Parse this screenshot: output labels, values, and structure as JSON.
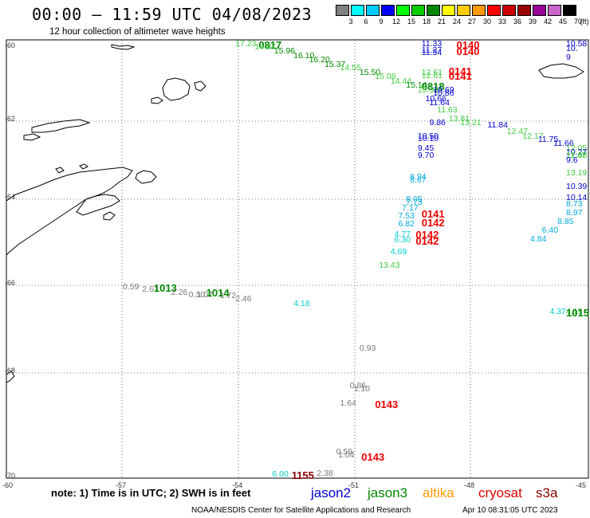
{
  "header": {
    "title": "00:00 – 11:59 UTC 04/08/2023",
    "subtitle": "12 hour collection of altimeter wave heights"
  },
  "colorbar": {
    "swatches": [
      {
        "value": "3",
        "color": "#808080"
      },
      {
        "value": "6",
        "color": "#00ffff"
      },
      {
        "value": "9",
        "color": "#00ccff"
      },
      {
        "value": "12",
        "color": "#0000ff"
      },
      {
        "value": "15",
        "color": "#00ff00"
      },
      {
        "value": "18",
        "color": "#00cc00"
      },
      {
        "value": "21",
        "color": "#008800"
      },
      {
        "value": "24",
        "color": "#ffff00"
      },
      {
        "value": "27",
        "color": "#ffcc00"
      },
      {
        "value": "30",
        "color": "#ff9900"
      },
      {
        "value": "33",
        "color": "#ff0000"
      },
      {
        "value": "36",
        "color": "#cc0000"
      },
      {
        "value": "39",
        "color": "#990000"
      },
      {
        "value": "42",
        "color": "#990099"
      },
      {
        "value": "45",
        "color": "#cc66cc"
      },
      {
        "value": "70",
        "color": "#000000"
      }
    ],
    "unit": "(ft)"
  },
  "axes": {
    "y_ticks": [
      "-60",
      "-62",
      "-64",
      "-66",
      "-68",
      "-70"
    ],
    "x_ticks": [
      "-60",
      "-57",
      "-54",
      "-51",
      "-48",
      "-45"
    ]
  },
  "labels": [
    {
      "text": "17.23",
      "lon": -54.1,
      "lat": -59.9,
      "color": "#44cc44"
    },
    {
      "text": "0817",
      "lon": -53.5,
      "lat": -59.9,
      "color": "#008800",
      "big": true
    },
    {
      "text": "14.97",
      "lon": -53.6,
      "lat": -60.07,
      "color": "#44cc44"
    },
    {
      "text": "15.96",
      "lon": -53.1,
      "lat": -60.17,
      "color": "#008800"
    },
    {
      "text": "16.10",
      "lon": -52.6,
      "lat": -60.27,
      "color": "#008800"
    },
    {
      "text": "16.20",
      "lon": -52.2,
      "lat": -60.37,
      "color": "#008800"
    },
    {
      "text": "15.37",
      "lon": -51.8,
      "lat": -60.47,
      "color": "#008800"
    },
    {
      "text": "14.55",
      "lon": -51.4,
      "lat": -60.55,
      "color": "#44cc44"
    },
    {
      "text": "15.50",
      "lon": -50.9,
      "lat": -60.65,
      "color": "#008800"
    },
    {
      "text": "15.08",
      "lon": -50.5,
      "lat": -60.75,
      "color": "#44cc44"
    },
    {
      "text": "14.44",
      "lon": -50.1,
      "lat": -60.85,
      "color": "#44cc44"
    },
    {
      "text": "15.14",
      "lon": -49.7,
      "lat": -60.95,
      "color": "#008800"
    },
    {
      "text": "0818",
      "lon": -49.3,
      "lat": -60.95,
      "color": "#008800",
      "big": true
    },
    {
      "text": "15.34",
      "lon": -49.4,
      "lat": -61.05,
      "color": "#44cc44"
    },
    {
      "text": "13.81",
      "lon": -48.6,
      "lat": -61.7,
      "color": "#44cc44"
    },
    {
      "text": "13.21",
      "lon": -48.3,
      "lat": -61.8,
      "color": "#44cc44"
    },
    {
      "text": "11.84",
      "lon": -47.6,
      "lat": -61.85,
      "color": "#0000cc"
    },
    {
      "text": "12.47",
      "lon": -47.1,
      "lat": -62.0,
      "color": "#44cc44"
    },
    {
      "text": "12.17",
      "lon": -46.7,
      "lat": -62.1,
      "color": "#44cc44"
    },
    {
      "text": "11.75",
      "lon": -46.3,
      "lat": -62.18,
      "color": "#0000cc"
    },
    {
      "text": "11.66",
      "lon": -45.9,
      "lat": -62.28,
      "color": "#0000cc"
    },
    {
      "text": "12.05",
      "lon": -45.5,
      "lat": -62.38,
      "color": "#44cc44"
    },
    {
      "text": "10.27",
      "lon": -45.1,
      "lat": -62.48,
      "color": "#0000cc"
    },
    {
      "text": "12.08",
      "lon": -44.6,
      "lat": -62.55,
      "color": "#44cc44"
    },
    {
      "text": "11.47",
      "lon": -44.2,
      "lat": -62.55,
      "color": "#44cc44"
    },
    {
      "text": "9.6",
      "lon": -44.15,
      "lat": -62.65,
      "color": "#0000cc"
    },
    {
      "text": "13.19",
      "lon": -44.5,
      "lat": -62.95,
      "color": "#44cc44"
    },
    {
      "text": "10.39",
      "lon": -44.6,
      "lat": -63.25,
      "color": "#0000cc"
    },
    {
      "text": "10.14",
      "lon": -44.95,
      "lat": -63.5,
      "color": "#0000cc"
    },
    {
      "text": "8.73",
      "lon": -45.2,
      "lat": -63.65,
      "color": "#00aadd"
    },
    {
      "text": "8.97",
      "lon": -45.55,
      "lat": -63.85,
      "color": "#00aadd"
    },
    {
      "text": "8.85",
      "lon": -45.8,
      "lat": -64.05,
      "color": "#00aadd"
    },
    {
      "text": "6.40",
      "lon": -46.2,
      "lat": -64.25,
      "color": "#00aadd"
    },
    {
      "text": "4.84",
      "lon": -46.5,
      "lat": -64.45,
      "color": "#00aadd"
    },
    {
      "text": "4.37",
      "lon": -46.0,
      "lat": -66.1,
      "color": "#00cccc"
    },
    {
      "text": "4.15",
      "lon": -45.4,
      "lat": -66.1,
      "color": "#44cc44"
    },
    {
      "text": "1015",
      "lon": -45.1,
      "lat": -66.1,
      "color": "#008800",
      "big": true
    },
    {
      "text": "11.33",
      "lon": -49.3,
      "lat": -59.9,
      "color": "#0000cc"
    },
    {
      "text": "0140",
      "lon": -48.4,
      "lat": -59.9,
      "color": "#ee0000",
      "big": true
    },
    {
      "text": "11.27",
      "lon": -49.3,
      "lat": -60.15,
      "color": "#0000cc"
    },
    {
      "text": "11.34",
      "lon": -49.3,
      "lat": -60.2,
      "color": "#0000cc"
    },
    {
      "text": "0140",
      "lon": -48.4,
      "lat": -60.15,
      "color": "#ee0000",
      "big": true
    },
    {
      "text": "12.61",
      "lon": -49.3,
      "lat": -60.65,
      "color": "#44cc44"
    },
    {
      "text": "12.61",
      "lon": -49.3,
      "lat": -60.72,
      "color": "#44cc44"
    },
    {
      "text": "0141",
      "lon": -48.6,
      "lat": -60.6,
      "color": "#ee0000",
      "big": true
    },
    {
      "text": "0141",
      "lon": -48.6,
      "lat": -60.7,
      "color": "#ee0000",
      "big": true
    },
    {
      "text": "10.69",
      "lon": -49.0,
      "lat": -61.05,
      "color": "#0000cc"
    },
    {
      "text": "10.86",
      "lon": -49.0,
      "lat": -61.12,
      "color": "#0000cc"
    },
    {
      "text": "10.66",
      "lon": -49.2,
      "lat": -61.25,
      "color": "#0000cc"
    },
    {
      "text": "11.64",
      "lon": -49.1,
      "lat": -61.35,
      "color": "#0000cc"
    },
    {
      "text": "11.63",
      "lon": -48.9,
      "lat": -61.5,
      "color": "#44cc44"
    },
    {
      "text": "9.86",
      "lon": -49.1,
      "lat": -61.8,
      "color": "#0000cc"
    },
    {
      "text": "10.50",
      "lon": -49.4,
      "lat": -62.1,
      "color": "#0000cc"
    },
    {
      "text": "10.10",
      "lon": -49.4,
      "lat": -62.17,
      "color": "#0000cc"
    },
    {
      "text": "9.45",
      "lon": -49.4,
      "lat": -62.38,
      "color": "#0000cc"
    },
    {
      "text": "9.70",
      "lon": -49.4,
      "lat": -62.55,
      "color": "#0000cc"
    },
    {
      "text": "8.94",
      "lon": -49.6,
      "lat": -63.03,
      "color": "#00aadd"
    },
    {
      "text": "8.67",
      "lon": -49.6,
      "lat": -63.1,
      "color": "#00aadd"
    },
    {
      "text": "8.05",
      "lon": -49.7,
      "lat": -63.55,
      "color": "#00aadd"
    },
    {
      "text": "7.73",
      "lon": -49.7,
      "lat": -63.62,
      "color": "#00aadd"
    },
    {
      "text": "7.17",
      "lon": -49.8,
      "lat": -63.75,
      "color": "#00aadd"
    },
    {
      "text": "7.53",
      "lon": -49.9,
      "lat": -63.92,
      "color": "#00aadd"
    },
    {
      "text": "6.82",
      "lon": -49.9,
      "lat": -64.1,
      "color": "#00aadd"
    },
    {
      "text": "0141",
      "lon": -49.3,
      "lat": -63.85,
      "color": "#ee0000",
      "big": true
    },
    {
      "text": "0142",
      "lon": -49.3,
      "lat": -64.05,
      "color": "#ee0000",
      "big": true
    },
    {
      "text": "4.77",
      "lon": -50.0,
      "lat": -64.35,
      "color": "#00cccc"
    },
    {
      "text": "0142",
      "lon": -49.45,
      "lat": -64.33,
      "color": "#ee0000",
      "big": true
    },
    {
      "text": "6.30",
      "lon": -50.0,
      "lat": -64.48,
      "color": "#00cccc"
    },
    {
      "text": "0142",
      "lon": -49.45,
      "lat": -64.48,
      "color": "#ee0000",
      "big": true
    },
    {
      "text": "4.69",
      "lon": -50.1,
      "lat": -64.75,
      "color": "#00cccc"
    },
    {
      "text": "13.43",
      "lon": -50.4,
      "lat": -65.05,
      "color": "#44cc44"
    },
    {
      "text": "0.59",
      "lon": -57.0,
      "lat": -65.55,
      "color": "#777777"
    },
    {
      "text": "2.61",
      "lon": -56.5,
      "lat": -65.6,
      "color": "#777777"
    },
    {
      "text": "1013",
      "lon": -56.2,
      "lat": -65.55,
      "color": "#008800",
      "big": true
    },
    {
      "text": "2.26",
      "lon": -55.75,
      "lat": -65.68,
      "color": "#777777"
    },
    {
      "text": "0.30",
      "lon": -55.3,
      "lat": -65.72,
      "color": "#777777"
    },
    {
      "text": "1.07",
      "lon": -55.1,
      "lat": -65.72,
      "color": "#777777"
    },
    {
      "text": "1014",
      "lon": -54.85,
      "lat": -65.65,
      "color": "#008800",
      "big": true
    },
    {
      "text": "1.72",
      "lon": -54.5,
      "lat": -65.75,
      "color": "#777777"
    },
    {
      "text": "2.46",
      "lon": -54.1,
      "lat": -65.82,
      "color": "#777777"
    },
    {
      "text": "4.18",
      "lon": -52.6,
      "lat": -65.92,
      "color": "#00cccc"
    },
    {
      "text": "0.93",
      "lon": -50.9,
      "lat": -66.95,
      "color": "#777777"
    },
    {
      "text": "0.86",
      "lon": -51.15,
      "lat": -67.8,
      "color": "#777777"
    },
    {
      "text": "1.10",
      "lon": -51.05,
      "lat": -67.87,
      "color": "#777777"
    },
    {
      "text": "1.64",
      "lon": -51.4,
      "lat": -68.2,
      "color": "#777777"
    },
    {
      "text": "0143",
      "lon": -50.5,
      "lat": -68.2,
      "color": "#ee0000",
      "big": true
    },
    {
      "text": "0.59",
      "lon": -51.5,
      "lat": -69.3,
      "color": "#777777"
    },
    {
      "text": "1.04",
      "lon": -51.45,
      "lat": -69.38,
      "color": "#777777"
    },
    {
      "text": "0143",
      "lon": -50.85,
      "lat": -69.4,
      "color": "#ee0000",
      "big": true
    },
    {
      "text": "2.38",
      "lon": -52.0,
      "lat": -69.8,
      "color": "#777777"
    },
    {
      "text": "6.00",
      "lon": -53.15,
      "lat": -70.0,
      "color": "#00cccc"
    },
    {
      "text": "1155",
      "lon": -52.65,
      "lat": -70.0,
      "color": "#880000",
      "big": true
    },
    {
      "text": "10.58",
      "lon": -44.6,
      "lat": -59.9,
      "color": "#0000cc"
    },
    {
      "text": "10.",
      "lon": -44.4,
      "lat": -60.1,
      "color": "#0000cc"
    },
    {
      "text": "9",
      "lon": -44.1,
      "lat": -60.3,
      "color": "#0000cc"
    }
  ],
  "footer": {
    "note": "note:  1) Time is in UTC;  2) SWH is in feet",
    "satellites": [
      {
        "name": "jason2",
        "color": "#0000cc"
      },
      {
        "name": "jason3",
        "color": "#008800"
      },
      {
        "name": "altika",
        "color": "#ff9900"
      },
      {
        "name": "cryosat",
        "color": "#dd0000"
      },
      {
        "name": "s3a",
        "color": "#880000"
      }
    ],
    "credit": "NOAA/NESDIS Center for Satellite Applications and Research",
    "timestamp": "Apr 10 08:31:05 UTC 2023"
  }
}
